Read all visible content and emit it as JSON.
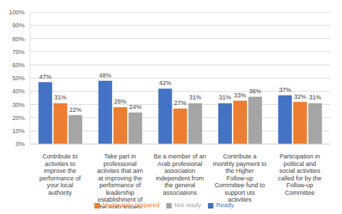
{
  "chart_data": {
    "type": "bar",
    "categories": [
      "Contribute to activities to improve the performance of your local authority",
      "Take part in professional activites that aim at improving the performance of leadership establishment of the Arab society",
      "Be a member of an Arab profesional association independent from the general associations",
      "Contribute a monthly payment to the Higher Follow-up Committee fund to support uts activities",
      "Participation in political and social activities called for by the Follow-up Committee"
    ],
    "series": [
      {
        "name": "Ready",
        "color": "#4472c4",
        "values": [
          47,
          48,
          42,
          31,
          37
        ],
        "value_labels": [
          "47%",
          "48%",
          "42%",
          "31%",
          "37%"
        ]
      },
      {
        "name": "Moderately prepared",
        "color": "#ed7d31",
        "values": [
          31,
          28,
          27,
          33,
          32
        ],
        "value_labels": [
          "31%",
          "28%",
          "27%",
          "33%",
          "32%"
        ]
      },
      {
        "name": "Not ready",
        "color": "#a5a5a5",
        "values": [
          22,
          24,
          31,
          36,
          31
        ],
        "value_labels": [
          "22%",
          "24%",
          "31%",
          "36%",
          "31%"
        ]
      }
    ],
    "ylim": [
      0,
      100
    ],
    "yticks": [
      {
        "value": 0,
        "label": "0%"
      },
      {
        "value": 10,
        "label": "10%"
      },
      {
        "value": 20,
        "label": "20%"
      },
      {
        "value": 30,
        "label": "30%"
      },
      {
        "value": 40,
        "label": "40%"
      },
      {
        "value": 50,
        "label": "50%"
      },
      {
        "value": 60,
        "label": "60%"
      },
      {
        "value": 70,
        "label": "70%"
      },
      {
        "value": 80,
        "label": "80%"
      },
      {
        "value": 90,
        "label": "90%"
      },
      {
        "value": 100,
        "label": "100%"
      }
    ],
    "grid": true,
    "legend": "bottom",
    "data_labels": true
  }
}
